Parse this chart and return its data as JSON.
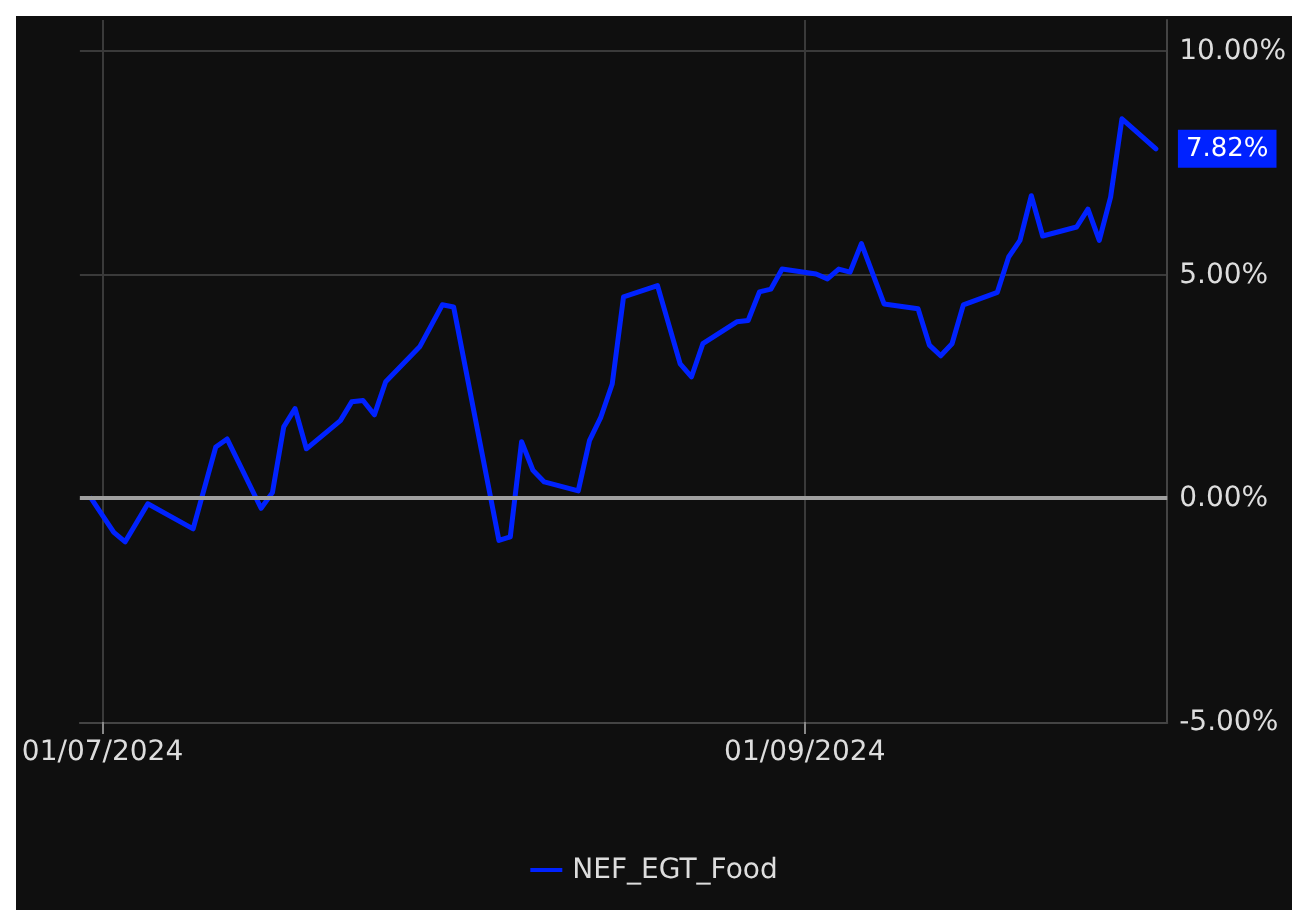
{
  "chart_data": {
    "type": "line",
    "x": [
      "2024-06-30",
      "2024-07-02",
      "2024-07-03",
      "2024-07-05",
      "2024-07-09",
      "2024-07-11",
      "2024-07-12",
      "2024-07-15",
      "2024-07-16",
      "2024-07-17",
      "2024-07-18",
      "2024-07-19",
      "2024-07-22",
      "2024-07-23",
      "2024-07-24",
      "2024-07-25",
      "2024-07-26",
      "2024-07-29",
      "2024-07-31",
      "2024-08-01",
      "2024-08-05",
      "2024-08-06",
      "2024-08-07",
      "2024-08-08",
      "2024-08-09",
      "2024-08-12",
      "2024-08-13",
      "2024-08-14",
      "2024-08-15",
      "2024-08-16",
      "2024-08-19",
      "2024-08-21",
      "2024-08-22",
      "2024-08-23",
      "2024-08-26",
      "2024-08-27",
      "2024-08-28",
      "2024-08-29",
      "2024-08-30",
      "2024-09-02",
      "2024-09-03",
      "2024-09-04",
      "2024-09-05",
      "2024-09-06",
      "2024-09-08",
      "2024-09-11",
      "2024-09-12",
      "2024-09-13",
      "2024-09-14",
      "2024-09-15",
      "2024-09-18",
      "2024-09-19",
      "2024-09-20",
      "2024-09-21",
      "2024-09-22",
      "2024-09-25",
      "2024-09-26",
      "2024-09-27",
      "2024-09-28",
      "2024-09-29",
      "2024-10-02"
    ],
    "series": [
      {
        "name": "NEF_EGT_Food",
        "color": "#0022ff",
        "values": [
          0.0,
          -0.76,
          -0.97,
          -0.12,
          -0.68,
          1.15,
          1.33,
          -0.22,
          0.13,
          1.6,
          2.01,
          1.11,
          1.74,
          2.16,
          2.19,
          1.87,
          2.61,
          3.39,
          4.33,
          4.28,
          -0.94,
          -0.86,
          1.27,
          0.63,
          0.37,
          0.17,
          1.3,
          1.82,
          2.56,
          4.51,
          4.76,
          3.01,
          2.72,
          3.46,
          3.95,
          3.98,
          4.62,
          4.68,
          5.13,
          5.02,
          4.91,
          5.13,
          5.06,
          5.7,
          4.35,
          4.24,
          3.43,
          3.19,
          3.46,
          4.33,
          4.61,
          5.4,
          5.77,
          6.77,
          5.87,
          6.07,
          6.47,
          5.77,
          6.74,
          8.49,
          7.82
        ],
        "value_labels": [
          null,
          null,
          null,
          null,
          null,
          null,
          null,
          null,
          null,
          null,
          null,
          null,
          null,
          null,
          null,
          null,
          null,
          null,
          null,
          null,
          null,
          null,
          null,
          null,
          null,
          null,
          null,
          null,
          null,
          null,
          null,
          null,
          null,
          null,
          null,
          null,
          null,
          null,
          null,
          null,
          null,
          null,
          null,
          null,
          null,
          null,
          null,
          null,
          null,
          null,
          null,
          null,
          null,
          null,
          null,
          null,
          null,
          null,
          null,
          null,
          "7.82%"
        ]
      }
    ],
    "xlim": [
      "2024-06-29",
      "2024-10-03"
    ],
    "xticks": [
      {
        "value": "2024-07-01",
        "label": "01/07/2024"
      },
      {
        "value": "2024-09-01",
        "label": "01/09/2024"
      }
    ],
    "ylim": [
      -5,
      10.7
    ],
    "yticks": [
      {
        "value": -5,
        "label": "-5.00%"
      },
      {
        "value": 0,
        "label": "0.00%"
      },
      {
        "value": 5,
        "label": "5.00%"
      },
      {
        "value": 10,
        "label": "10.00%"
      }
    ],
    "ref_lines": [
      {
        "axis": "y",
        "value": 0,
        "color": "#a0a0a0"
      }
    ],
    "grid": true,
    "legend": "bottom",
    "marker": "none",
    "line_style": "solid"
  }
}
